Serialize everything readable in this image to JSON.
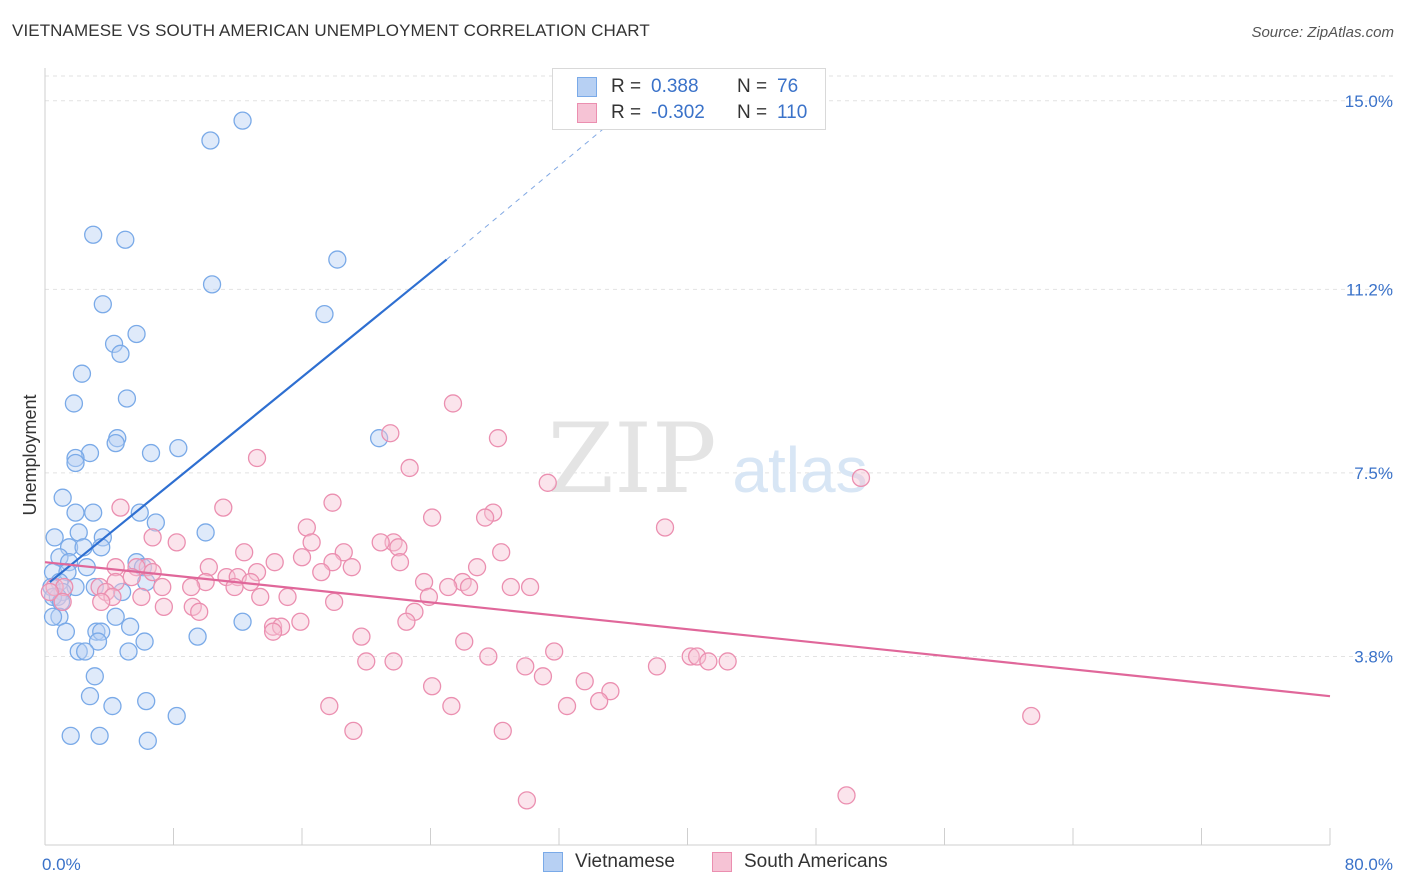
{
  "title": "VIETNAMESE VS SOUTH AMERICAN UNEMPLOYMENT CORRELATION CHART",
  "source": "Source: ZipAtlas.com",
  "watermark": {
    "zip": "ZIP",
    "atlas": "atlas"
  },
  "colors": {
    "blue": "#7aaae8",
    "blue_fill": "#b7d0f3",
    "blue_line": "#2e6fd1",
    "pink": "#eb8fb0",
    "pink_fill": "#f6c3d5",
    "pink_line": "#e0679a",
    "axis_text": "#3a72c9"
  },
  "legend": {
    "row1": {
      "r_label": "R =",
      "r_value": "0.388",
      "n_label": "N =",
      "n_value": "76"
    },
    "row2": {
      "r_label": "R =",
      "r_value": "-0.302",
      "n_label": "N =",
      "n_value": "110"
    }
  },
  "bottom_legend": {
    "series1": "Vietnamese",
    "series2": "South Americans"
  },
  "chart_data": {
    "type": "scatter",
    "title": "VIETNAMESE VS SOUTH AMERICAN UNEMPLOYMENT CORRELATION CHART",
    "xlabel": "",
    "ylabel": "Unemployment",
    "xlim": [
      0,
      80
    ],
    "ylim": [
      0,
      15.5
    ],
    "x_tick_labels": [
      "0.0%",
      "80.0%"
    ],
    "y_ticks": [
      3.8,
      7.5,
      11.2,
      15.0
    ],
    "y_tick_labels": [
      "3.8%",
      "7.5%",
      "11.2%",
      "15.0%"
    ],
    "series": [
      {
        "name": "Vietnamese",
        "r": 0.388,
        "n": 76,
        "trend": {
          "x": [
            0.3,
            25
          ],
          "y": [
            5.3,
            11.8
          ],
          "dashed_to": {
            "x": 35,
            "y": 14.5
          }
        },
        "points": [
          [
            12.3,
            14.6
          ],
          [
            10.3,
            14.2
          ],
          [
            3.0,
            12.3
          ],
          [
            5.0,
            12.2
          ],
          [
            18.2,
            11.8
          ],
          [
            10.4,
            11.3
          ],
          [
            3.6,
            10.9
          ],
          [
            17.4,
            10.7
          ],
          [
            5.7,
            10.3
          ],
          [
            4.3,
            10.1
          ],
          [
            4.7,
            9.9
          ],
          [
            2.3,
            9.5
          ],
          [
            5.1,
            9.0
          ],
          [
            1.8,
            8.9
          ],
          [
            20.8,
            8.2
          ],
          [
            4.5,
            8.2
          ],
          [
            4.4,
            8.1
          ],
          [
            8.3,
            8.0
          ],
          [
            2.8,
            7.9
          ],
          [
            6.6,
            7.9
          ],
          [
            1.9,
            7.8
          ],
          [
            1.9,
            7.7
          ],
          [
            1.1,
            7.0
          ],
          [
            3.0,
            6.7
          ],
          [
            5.9,
            6.7
          ],
          [
            1.9,
            6.7
          ],
          [
            6.9,
            6.5
          ],
          [
            10.0,
            6.3
          ],
          [
            2.1,
            6.3
          ],
          [
            0.6,
            6.2
          ],
          [
            3.6,
            6.2
          ],
          [
            1.5,
            6.0
          ],
          [
            2.4,
            6.0
          ],
          [
            3.5,
            6.0
          ],
          [
            0.9,
            5.8
          ],
          [
            1.5,
            5.7
          ],
          [
            2.6,
            5.6
          ],
          [
            5.7,
            5.7
          ],
          [
            6.1,
            5.6
          ],
          [
            0.5,
            5.5
          ],
          [
            1.4,
            5.5
          ],
          [
            0.9,
            5.3
          ],
          [
            6.3,
            5.3
          ],
          [
            1.9,
            5.2
          ],
          [
            3.1,
            5.2
          ],
          [
            4.8,
            5.1
          ],
          [
            0.4,
            5.2
          ],
          [
            1.1,
            5.1
          ],
          [
            0.8,
            5.0
          ],
          [
            0.5,
            5.0
          ],
          [
            1.0,
            4.9
          ],
          [
            4.4,
            4.6
          ],
          [
            0.9,
            4.6
          ],
          [
            0.5,
            4.6
          ],
          [
            12.3,
            4.5
          ],
          [
            5.3,
            4.4
          ],
          [
            1.3,
            4.3
          ],
          [
            3.2,
            4.3
          ],
          [
            3.5,
            4.3
          ],
          [
            9.5,
            4.2
          ],
          [
            3.3,
            4.1
          ],
          [
            6.2,
            4.1
          ],
          [
            2.1,
            3.9
          ],
          [
            2.5,
            3.9
          ],
          [
            5.2,
            3.9
          ],
          [
            3.1,
            3.4
          ],
          [
            2.8,
            3.0
          ],
          [
            6.3,
            2.9
          ],
          [
            4.2,
            2.8
          ],
          [
            8.2,
            2.6
          ],
          [
            1.6,
            2.2
          ],
          [
            3.4,
            2.2
          ],
          [
            6.4,
            2.1
          ]
        ]
      },
      {
        "name": "South Americans",
        "r": -0.302,
        "n": 110,
        "trend": {
          "x": [
            0.0,
            80
          ],
          "y": [
            5.7,
            3.0
          ]
        },
        "points": [
          [
            25.4,
            8.9
          ],
          [
            21.5,
            8.3
          ],
          [
            28.2,
            8.2
          ],
          [
            13.2,
            7.8
          ],
          [
            22.7,
            7.6
          ],
          [
            31.3,
            7.3
          ],
          [
            50.8,
            7.4
          ],
          [
            17.9,
            6.9
          ],
          [
            11.1,
            6.8
          ],
          [
            4.7,
            6.8
          ],
          [
            27.9,
            6.7
          ],
          [
            24.1,
            6.6
          ],
          [
            27.4,
            6.6
          ],
          [
            38.6,
            6.4
          ],
          [
            16.3,
            6.4
          ],
          [
            6.7,
            6.2
          ],
          [
            16.6,
            6.1
          ],
          [
            8.2,
            6.1
          ],
          [
            21.7,
            6.1
          ],
          [
            20.9,
            6.1
          ],
          [
            22.0,
            6.0
          ],
          [
            28.4,
            5.9
          ],
          [
            18.6,
            5.9
          ],
          [
            12.4,
            5.9
          ],
          [
            16.0,
            5.8
          ],
          [
            17.9,
            5.7
          ],
          [
            19.1,
            5.6
          ],
          [
            14.3,
            5.7
          ],
          [
            22.1,
            5.7
          ],
          [
            10.2,
            5.6
          ],
          [
            6.4,
            5.6
          ],
          [
            5.7,
            5.6
          ],
          [
            4.4,
            5.6
          ],
          [
            26.9,
            5.6
          ],
          [
            17.2,
            5.5
          ],
          [
            13.2,
            5.5
          ],
          [
            6.7,
            5.5
          ],
          [
            11.3,
            5.4
          ],
          [
            12.0,
            5.4
          ],
          [
            5.4,
            5.4
          ],
          [
            4.4,
            5.3
          ],
          [
            12.8,
            5.3
          ],
          [
            23.6,
            5.3
          ],
          [
            10.0,
            5.3
          ],
          [
            26.0,
            5.3
          ],
          [
            7.3,
            5.2
          ],
          [
            9.1,
            5.2
          ],
          [
            11.8,
            5.2
          ],
          [
            25.1,
            5.2
          ],
          [
            26.4,
            5.2
          ],
          [
            29.0,
            5.2
          ],
          [
            30.2,
            5.2
          ],
          [
            0.6,
            5.2
          ],
          [
            1.2,
            5.2
          ],
          [
            3.4,
            5.2
          ],
          [
            3.8,
            5.1
          ],
          [
            6.0,
            5.0
          ],
          [
            0.3,
            5.1
          ],
          [
            23.9,
            5.0
          ],
          [
            15.1,
            5.0
          ],
          [
            13.4,
            5.0
          ],
          [
            4.2,
            5.0
          ],
          [
            1.1,
            4.9
          ],
          [
            18.0,
            4.9
          ],
          [
            3.5,
            4.9
          ],
          [
            7.4,
            4.8
          ],
          [
            9.2,
            4.8
          ],
          [
            23.0,
            4.7
          ],
          [
            9.6,
            4.7
          ],
          [
            15.9,
            4.5
          ],
          [
            22.5,
            4.5
          ],
          [
            14.2,
            4.4
          ],
          [
            14.7,
            4.4
          ],
          [
            14.2,
            4.3
          ],
          [
            19.7,
            4.2
          ],
          [
            26.1,
            4.1
          ],
          [
            31.7,
            3.9
          ],
          [
            27.6,
            3.8
          ],
          [
            40.2,
            3.8
          ],
          [
            40.6,
            3.8
          ],
          [
            20.0,
            3.7
          ],
          [
            21.7,
            3.7
          ],
          [
            41.3,
            3.7
          ],
          [
            42.5,
            3.7
          ],
          [
            29.9,
            3.6
          ],
          [
            38.1,
            3.6
          ],
          [
            31.0,
            3.4
          ],
          [
            24.1,
            3.2
          ],
          [
            33.6,
            3.3
          ],
          [
            35.2,
            3.1
          ],
          [
            34.5,
            2.9
          ],
          [
            17.7,
            2.8
          ],
          [
            25.3,
            2.8
          ],
          [
            32.5,
            2.8
          ],
          [
            61.4,
            2.6
          ],
          [
            19.2,
            2.3
          ],
          [
            28.5,
            2.3
          ],
          [
            30.0,
            0.9
          ],
          [
            49.9,
            1.0
          ]
        ]
      }
    ]
  }
}
